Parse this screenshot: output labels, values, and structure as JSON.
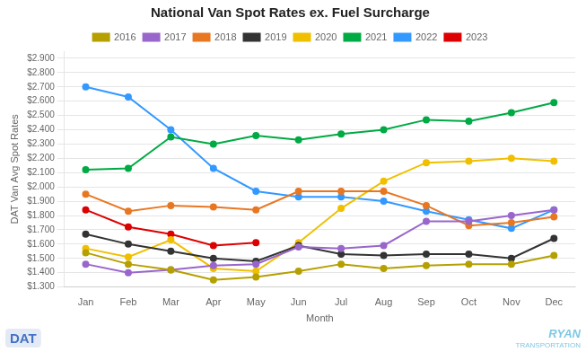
{
  "chart_data": {
    "type": "line",
    "title": "National Van Spot Rates ex. Fuel Surcharge",
    "x_label": "Month",
    "y_label": "DAT Van Avg Spot Rates",
    "categories": [
      "Jan",
      "Feb",
      "Mar",
      "Apr",
      "May",
      "Jun",
      "Jul",
      "Aug",
      "Sep",
      "Oct",
      "Nov",
      "Dec"
    ],
    "series": [
      {
        "name": "2016",
        "color": "#b5a000",
        "marker": "circle",
        "values": [
          1.54,
          1.46,
          1.42,
          1.35,
          1.37,
          1.41,
          1.46,
          1.43,
          1.45,
          1.46,
          1.46,
          1.52
        ]
      },
      {
        "name": "2017",
        "color": "#9966cc",
        "marker": "circle",
        "values": [
          1.46,
          1.4,
          1.42,
          1.45,
          1.46,
          1.58,
          1.57,
          1.59,
          1.76,
          1.76,
          1.8,
          1.84
        ]
      },
      {
        "name": "2018",
        "color": "#e87722",
        "marker": "circle",
        "values": [
          1.95,
          1.83,
          1.87,
          1.86,
          1.84,
          1.97,
          1.97,
          1.97,
          1.87,
          1.73,
          1.75,
          1.79
        ]
      },
      {
        "name": "2019",
        "color": "#333333",
        "marker": "circle",
        "values": [
          1.67,
          1.6,
          1.55,
          1.5,
          1.48,
          1.59,
          1.53,
          1.52,
          1.53,
          1.53,
          1.5,
          1.64
        ]
      },
      {
        "name": "2020",
        "color": "#f0c000",
        "marker": "circle",
        "values": [
          1.57,
          1.51,
          1.63,
          1.43,
          1.41,
          1.61,
          1.85,
          2.04,
          2.17,
          2.18,
          2.2,
          2.18
        ]
      },
      {
        "name": "2021",
        "color": "#00aa44",
        "marker": "circle",
        "values": [
          2.12,
          2.13,
          2.35,
          2.3,
          2.36,
          2.33,
          2.37,
          2.4,
          2.47,
          2.46,
          2.52,
          2.59
        ]
      },
      {
        "name": "2022",
        "color": "#3399ff",
        "marker": "circle",
        "values": [
          2.7,
          2.63,
          2.4,
          2.13,
          1.97,
          1.93,
          1.93,
          1.9,
          1.83,
          1.77,
          1.71,
          1.84
        ]
      },
      {
        "name": "2023",
        "color": "#dd0000",
        "marker": "circle",
        "values": [
          1.84,
          1.72,
          1.67,
          1.59,
          1.61,
          null,
          null,
          null,
          null,
          null,
          null,
          null
        ]
      }
    ],
    "ylim": [
      1.3,
      2.95
    ],
    "yticks": [
      {
        "value": 1.3,
        "label": "$1.300"
      },
      {
        "value": 1.4,
        "label": "$1.400"
      },
      {
        "value": 1.5,
        "label": "$1.500"
      },
      {
        "value": 1.6,
        "label": "$1.600"
      },
      {
        "value": 1.7,
        "label": "$1.700"
      },
      {
        "value": 1.8,
        "label": "$1.800"
      },
      {
        "value": 1.9,
        "label": "$1.900"
      },
      {
        "value": 2.0,
        "label": "$2.000"
      },
      {
        "value": 2.1,
        "label": "$2.100"
      },
      {
        "value": 2.2,
        "label": "$2.200"
      },
      {
        "value": 2.3,
        "label": "$2.300"
      },
      {
        "value": 2.4,
        "label": "$2.400"
      },
      {
        "value": 2.5,
        "label": "$2.500"
      },
      {
        "value": 2.6,
        "label": "$2.600"
      },
      {
        "value": 2.7,
        "label": "$2.700"
      },
      {
        "value": 2.8,
        "label": "$2.800"
      },
      {
        "value": 2.9,
        "label": "$2.900"
      }
    ],
    "grid": "y",
    "legend": "top",
    "annotations": [
      "DAT",
      "RYAN",
      "TRANSPORTATION"
    ]
  }
}
